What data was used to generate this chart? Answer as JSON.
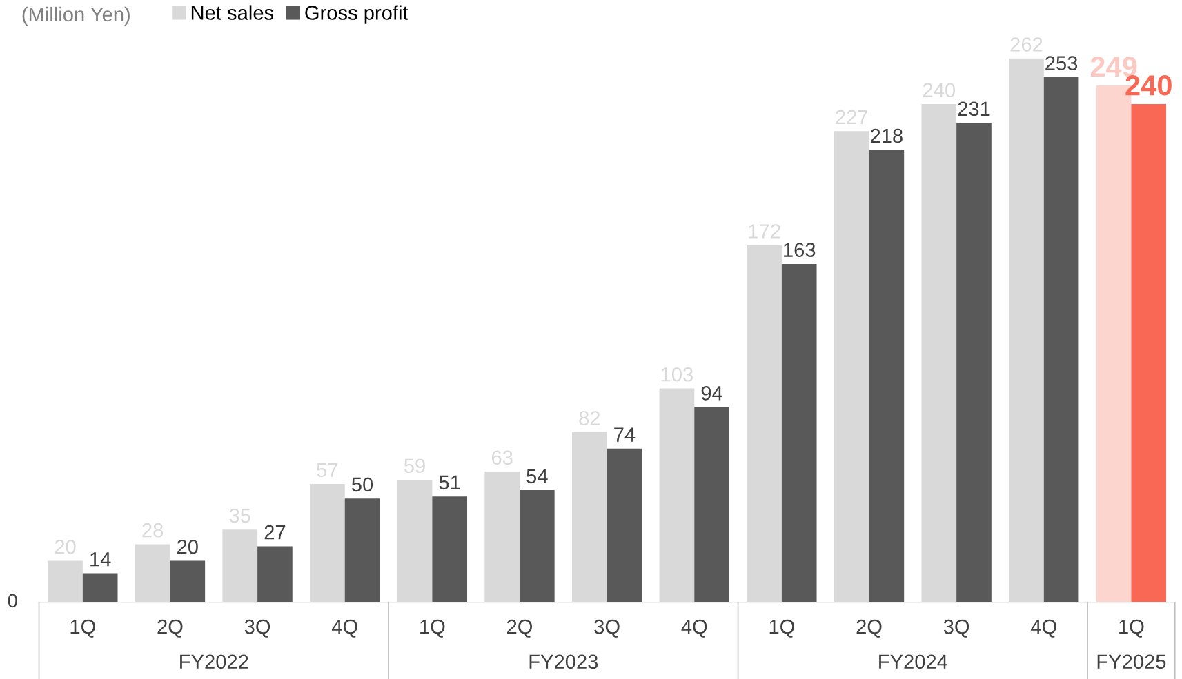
{
  "chart_data": {
    "type": "bar",
    "ylabel": "(Million Yen)",
    "categories": [
      "1Q",
      "2Q",
      "3Q",
      "4Q",
      "1Q",
      "2Q",
      "3Q",
      "4Q",
      "1Q",
      "2Q",
      "3Q",
      "4Q",
      "1Q"
    ],
    "series": [
      {
        "name": "Net sales",
        "color": "#d9d9d9",
        "colors": [
          "#d9d9d9",
          "#d9d9d9",
          "#d9d9d9",
          "#d9d9d9",
          "#d9d9d9",
          "#d9d9d9",
          "#d9d9d9",
          "#d9d9d9",
          "#d9d9d9",
          "#d9d9d9",
          "#d9d9d9",
          "#d9d9d9",
          "#fdd5cf"
        ],
        "values": [
          20,
          28,
          35,
          57,
          59,
          63,
          82,
          103,
          172,
          227,
          240,
          262,
          249
        ]
      },
      {
        "name": "Gross profit",
        "color": "#595959",
        "colors": [
          "#595959",
          "#595959",
          "#595959",
          "#595959",
          "#595959",
          "#595959",
          "#595959",
          "#595959",
          "#595959",
          "#595959",
          "#595959",
          "#595959",
          "#f96854"
        ],
        "values": [
          14,
          20,
          27,
          50,
          51,
          54,
          74,
          94,
          163,
          218,
          231,
          253,
          240
        ]
      }
    ],
    "annotations": [
      "0",
      "FY2022",
      "FY2023",
      "FY2024",
      "FY2025"
    ],
    "data_labels": true,
    "legend": "top left"
  }
}
